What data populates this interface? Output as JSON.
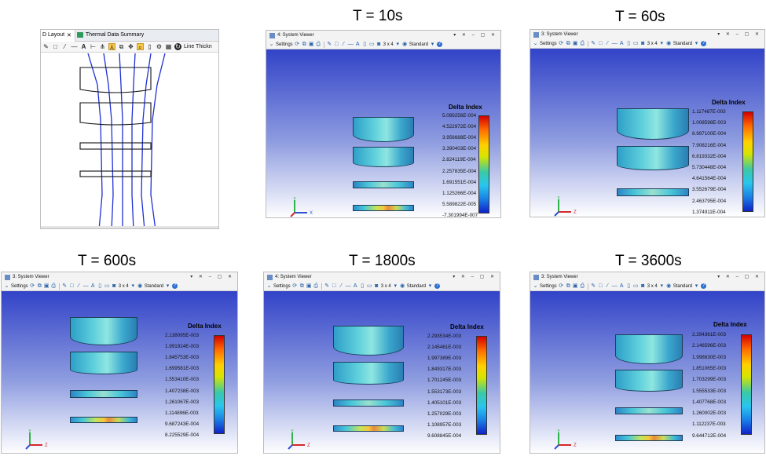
{
  "layout_panel": {
    "tabs": [
      {
        "label": "D Layout",
        "close": "✕"
      },
      {
        "label": "Thermal Data Summary"
      }
    ],
    "toolbar_text": "Line Thickn",
    "toolbar_icons": [
      "pencil-icon",
      "rectangle-icon",
      "line-icon",
      "dash-icon",
      "text-icon",
      "dimension-icon",
      "ray-icon",
      "ray-aim-icon",
      "copy-icon",
      "zoom-icon",
      "lock-icon",
      "settings-icon",
      "layout-icon",
      "refresh-icon"
    ]
  },
  "viewer_toolbar": {
    "settings_label": "Settings",
    "layout_label": "3 x 4",
    "view_label": "Standard"
  },
  "colorbar_title": "Delta Index",
  "viewers": [
    {
      "heading": "T = 10s",
      "title": "4: System Viewer",
      "axis_horizontal": "X",
      "axis_vertical": "Y",
      "colorbar_labels": [
        "5.089256E-004",
        "4.522972E-004",
        "3.956688E-004",
        "3.390403E-004",
        "2.824119E-004",
        "2.257835E-004",
        "1.691551E-004",
        "1.125266E-004",
        "5.589822E-005",
        "-7.301994E-007"
      ]
    },
    {
      "heading": "T = 60s",
      "title": "3: System Viewer",
      "axis_horizontal": "Z",
      "axis_vertical": "Y",
      "colorbar_labels": [
        "1.117487E-003",
        "1.008598E-003",
        "8.997100E-004",
        "7.908216E-004",
        "6.819332E-004",
        "5.730448E-004",
        "4.641564E-004",
        "3.552679E-004",
        "2.463795E-004",
        "1.374911E-004"
      ]
    },
    {
      "heading": "T = 600s",
      "title": "3: System Viewer",
      "axis_horizontal": "Z",
      "axis_vertical": "Y",
      "colorbar_labels": [
        "2.138095E-003",
        "1.991924E-003",
        "1.845753E-003",
        "1.699581E-003",
        "1.553410E-003",
        "1.407238E-003",
        "1.261067E-003",
        "1.114896E-003",
        "9.687243E-004",
        "8.225529E-004"
      ]
    },
    {
      "heading": "T = 1800s",
      "title": "4: System Viewer",
      "axis_horizontal": "Z",
      "axis_vertical": "Y",
      "colorbar_labels": [
        "2.293534E-003",
        "2.145461E-003",
        "1.997389E-003",
        "1.849317E-003",
        "1.701245E-003",
        "1.553173E-003",
        "1.405101E-003",
        "1.257029E-003",
        "1.108957E-003",
        "9.608845E-004"
      ]
    },
    {
      "heading": "T = 3600s",
      "title": "3: System Viewer",
      "axis_horizontal": "Z",
      "axis_vertical": "Y",
      "colorbar_labels": [
        "2.294361E-003",
        "2.146596E-003",
        "1.998830E-003",
        "1.851065E-003",
        "1.703299E-003",
        "1.555533E-003",
        "1.407768E-003",
        "1.260002E-003",
        "1.112237E-003",
        "9.644712E-004"
      ]
    }
  ],
  "colors": {
    "ray": "#1f2fd6",
    "canvas_top": "#3243c8",
    "lens_outline": "#1d3e5a"
  }
}
